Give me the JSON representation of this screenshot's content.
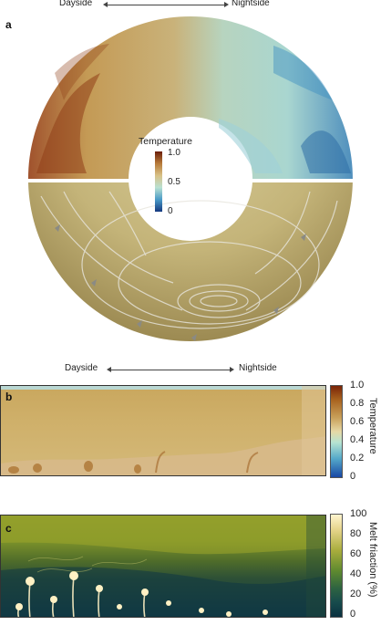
{
  "top": {
    "panel_label": "a",
    "dayside": "Dayside",
    "nightside": "Nightside",
    "colorbar": {
      "title": "Temperature",
      "ticks": [
        "1.0",
        "0.5",
        "0"
      ]
    }
  },
  "middle": {
    "dayside": "Dayside",
    "nightside": "Nightside"
  },
  "panel_b": {
    "panel_label": "b",
    "colorbar": {
      "title": "Temperature",
      "ticks": [
        "1.0",
        "0.8",
        "0.6",
        "0.4",
        "0.2",
        "0"
      ],
      "tick_values": [
        1.0,
        0.8,
        0.6,
        0.4,
        0.2,
        0.0
      ]
    }
  },
  "panel_c": {
    "panel_label": "c",
    "colorbar": {
      "title": "Melt friaction (%)",
      "ticks": [
        "100",
        "80",
        "60",
        "40",
        "20",
        "0"
      ],
      "tick_values": [
        100,
        80,
        60,
        40,
        20,
        0
      ]
    }
  },
  "colors": {
    "temp_hot": "#8b3a12",
    "temp_warm": "#c8a15a",
    "temp_mid": "#b5e1cf",
    "temp_cool": "#3b8fc2",
    "temp_cold": "#1b3f8f",
    "melt_high": "#fff1c4",
    "melt_mid": "#7f9a2a",
    "melt_low": "#0b3a4a"
  }
}
